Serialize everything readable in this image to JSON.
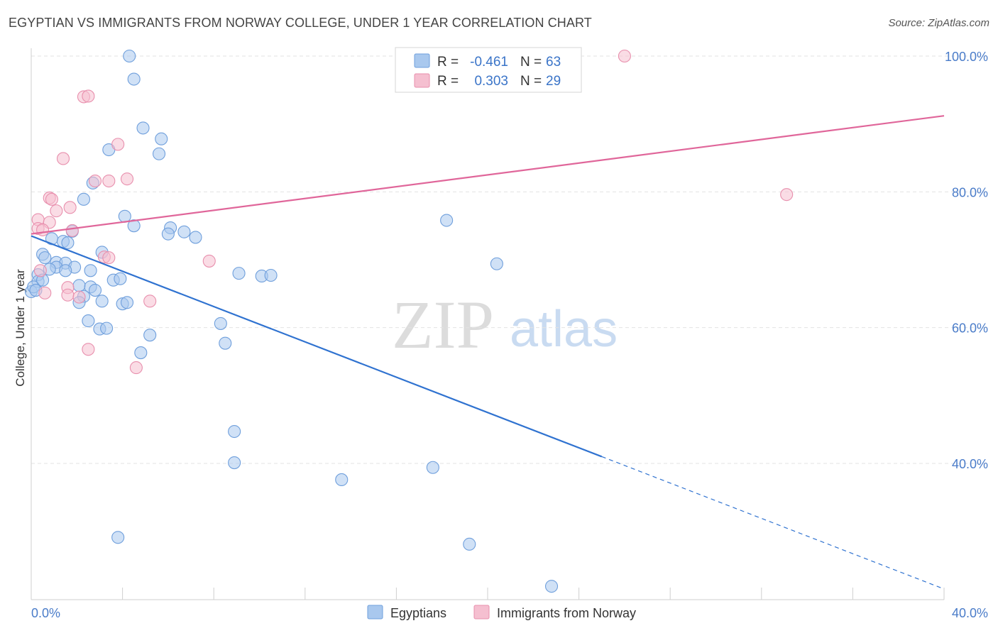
{
  "header": {
    "title": "EGYPTIAN VS IMMIGRANTS FROM NORWAY COLLEGE, UNDER 1 YEAR CORRELATION CHART",
    "source": "Source: ZipAtlas.com"
  },
  "watermark": {
    "zip": "ZIP",
    "atlas": "atlas"
  },
  "chart_data": {
    "type": "scatter",
    "title": "EGYPTIAN VS IMMIGRANTS FROM NORWAY COLLEGE, UNDER 1 YEAR CORRELATION CHART",
    "ylabel": "College, Under 1 year",
    "xlabel": "",
    "xlim": [
      0,
      40
    ],
    "ylim": [
      18,
      102
    ],
    "x_tick_labels": [
      "0.0%",
      "40.0%"
    ],
    "y_ticks": [
      {
        "value": 100,
        "label": "100.0%"
      },
      {
        "value": 80,
        "label": "80.0%"
      },
      {
        "value": 60,
        "label": "60.0%"
      },
      {
        "value": 40,
        "label": "40.0%"
      }
    ],
    "grid": true,
    "colors": {
      "egyptians_fill": "#a9c8ee",
      "egyptians_stroke": "#6f9fdc",
      "egyptians_line": "#2f72d0",
      "norway_fill": "#f5bfd0",
      "norway_stroke": "#e88fad",
      "norway_line": "#e0669a",
      "tick_text": "#4a7cc9"
    },
    "legend": {
      "rows": [
        {
          "r_label": "R =",
          "r_value": "-0.461",
          "n_label": "N =",
          "n_value": "63"
        },
        {
          "r_label": "R =",
          "r_value": "0.303",
          "n_label": "N =",
          "n_value": "29"
        }
      ]
    },
    "series": [
      {
        "name": "Egyptians",
        "r": -0.461,
        "n": 63,
        "points": [
          [
            4.3,
            100
          ],
          [
            4.5,
            96.6
          ],
          [
            4.9,
            89.4
          ],
          [
            5.7,
            87.8
          ],
          [
            3.4,
            86.2
          ],
          [
            5.6,
            85.6
          ],
          [
            2.7,
            81.3
          ],
          [
            2.3,
            78.9
          ],
          [
            4.1,
            76.4
          ],
          [
            4.5,
            75
          ],
          [
            18.2,
            75.8
          ],
          [
            6.1,
            74.7
          ],
          [
            6.7,
            74.1
          ],
          [
            6.0,
            73.8
          ],
          [
            7.2,
            73.3
          ],
          [
            1.8,
            74.2
          ],
          [
            0.9,
            73.1
          ],
          [
            1.4,
            72.7
          ],
          [
            1.6,
            72.5
          ],
          [
            3.1,
            71.1
          ],
          [
            0.5,
            70.8
          ],
          [
            0.6,
            70.3
          ],
          [
            1.1,
            69.6
          ],
          [
            1.5,
            69.5
          ],
          [
            20.4,
            69.4
          ],
          [
            1.1,
            68.9
          ],
          [
            1.9,
            68.9
          ],
          [
            0.8,
            68.6
          ],
          [
            1.5,
            68.4
          ],
          [
            2.6,
            68.4
          ],
          [
            9.1,
            68
          ],
          [
            10.1,
            67.6
          ],
          [
            10.5,
            67.7
          ],
          [
            0.3,
            67.8
          ],
          [
            3.6,
            67
          ],
          [
            3.9,
            67.2
          ],
          [
            0.3,
            66.8
          ],
          [
            2.1,
            66.2
          ],
          [
            2.6,
            66
          ],
          [
            2.8,
            65.5
          ],
          [
            0,
            65.3
          ],
          [
            2.3,
            64.6
          ],
          [
            2.1,
            63.7
          ],
          [
            3.1,
            63.9
          ],
          [
            4.0,
            63.5
          ],
          [
            4.2,
            63.7
          ],
          [
            2.5,
            61
          ],
          [
            3.0,
            59.8
          ],
          [
            3.3,
            59.9
          ],
          [
            5.2,
            58.9
          ],
          [
            8.3,
            60.6
          ],
          [
            8.5,
            57.7
          ],
          [
            4.8,
            56.3
          ],
          [
            8.9,
            44.7
          ],
          [
            8.9,
            40.1
          ],
          [
            13.6,
            37.6
          ],
          [
            17.6,
            39.4
          ],
          [
            3.8,
            29.1
          ],
          [
            19.2,
            28.1
          ],
          [
            22.8,
            21.9
          ],
          [
            0.1,
            66
          ],
          [
            0.5,
            67
          ],
          [
            0.2,
            65.5
          ]
        ],
        "trend": {
          "x1": 0,
          "y1": 73.5,
          "x2": 25,
          "y2": 41,
          "dash_to_x": 40,
          "dash_to_y": 21.5
        }
      },
      {
        "name": "Immigrants from Norway",
        "r": 0.303,
        "n": 29,
        "points": [
          [
            26,
            100
          ],
          [
            2.3,
            94
          ],
          [
            2.5,
            94.1
          ],
          [
            3.8,
            87
          ],
          [
            1.4,
            84.9
          ],
          [
            2.8,
            81.6
          ],
          [
            3.4,
            81.6
          ],
          [
            4.2,
            81.9
          ],
          [
            0.8,
            79.1
          ],
          [
            0.9,
            78.9
          ],
          [
            1.1,
            77.2
          ],
          [
            1.7,
            77.7
          ],
          [
            33.1,
            79.6
          ],
          [
            0.3,
            75.9
          ],
          [
            0.8,
            75.5
          ],
          [
            0.3,
            74.6
          ],
          [
            0.5,
            74.4
          ],
          [
            1.8,
            74.3
          ],
          [
            3.2,
            70.4
          ],
          [
            3.4,
            70.3
          ],
          [
            7.8,
            69.8
          ],
          [
            0.4,
            68.4
          ],
          [
            1.6,
            65.9
          ],
          [
            0.6,
            65.1
          ],
          [
            1.6,
            64.8
          ],
          [
            2.1,
            64.5
          ],
          [
            5.2,
            63.9
          ],
          [
            2.5,
            56.8
          ],
          [
            4.6,
            54.1
          ]
        ],
        "trend": {
          "x1": 0,
          "y1": 73.8,
          "x2": 40,
          "y2": 91.2
        }
      }
    ]
  }
}
